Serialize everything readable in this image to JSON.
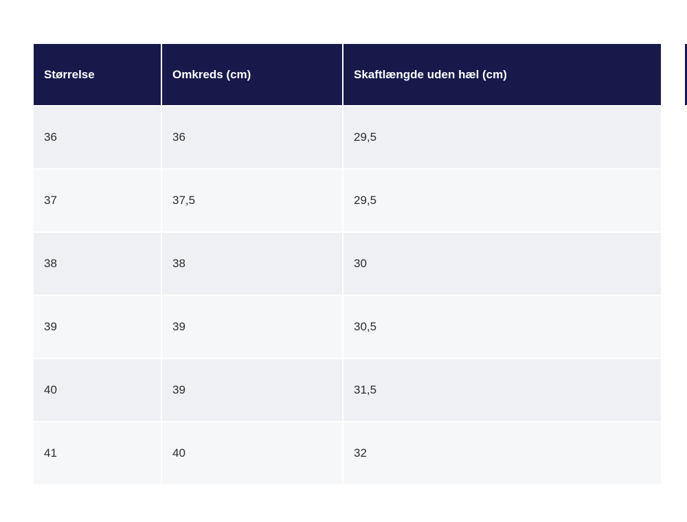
{
  "table": {
    "headers": [
      "Størrelse",
      "Omkreds (cm)",
      "Skaftlængde uden hæl (cm)"
    ],
    "rows": [
      [
        "36",
        "36",
        "29,5"
      ],
      [
        "37",
        "37,5",
        "29,5"
      ],
      [
        "38",
        "38",
        "30"
      ],
      [
        "39",
        "39",
        "30,5"
      ],
      [
        "40",
        "39",
        "31,5"
      ],
      [
        "41",
        "40",
        "32"
      ]
    ]
  },
  "colors": {
    "header_bg": "#17194a",
    "header_text": "#ffffff",
    "row_odd": "#eef0f3",
    "row_even": "#f6f7f9"
  }
}
